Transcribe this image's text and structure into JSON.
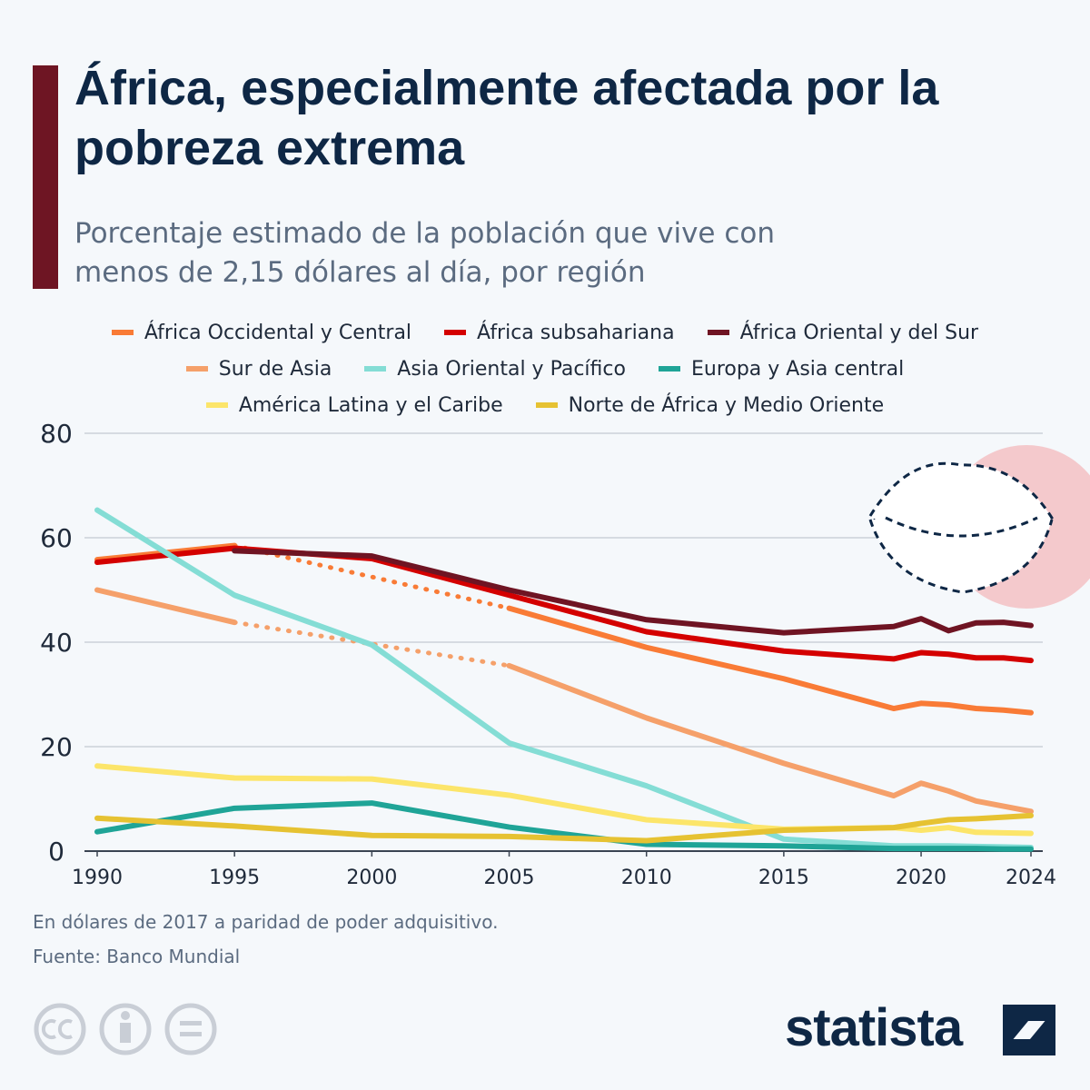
{
  "chart_data": {
    "type": "line",
    "title": "África, especialmente afectada por la pobreza extrema",
    "subtitle": "Porcentaje estimado de la población que vive con menos de 2,15 dólares al día, por región",
    "x": [
      1990,
      1995,
      2000,
      2005,
      2010,
      2015,
      2019,
      2020,
      2021,
      2022,
      2023,
      2024
    ],
    "series": [
      {
        "name": "África Occidental y Central",
        "color": "#f97b36",
        "values": [
          55.8,
          58.5,
          null,
          46.5,
          39,
          33,
          27.3,
          28.3,
          28,
          27.3,
          27,
          26.5
        ]
      },
      {
        "name": "África subsahariana",
        "color": "#d40000",
        "values": [
          55.3,
          58,
          56,
          49,
          42,
          38.3,
          36.8,
          38,
          37.7,
          37,
          37,
          36.5
        ]
      },
      {
        "name": "África Oriental y del Sur",
        "color": "#6f1423",
        "values": [
          null,
          57.5,
          56.5,
          50,
          44.3,
          41.8,
          43,
          44.5,
          42.2,
          43.7,
          43.8,
          43.2
        ]
      },
      {
        "name": "Sur de Asia",
        "color": "#f5a06a",
        "values": [
          50,
          43.8,
          null,
          35.5,
          25.5,
          16.8,
          10.6,
          13,
          11.5,
          9.6,
          8.6,
          7.6
        ]
      },
      {
        "name": "Asia Oriental y Pacífico",
        "color": "#84ddd5",
        "values": [
          65.3,
          49,
          39.5,
          20.7,
          12.5,
          2.3,
          1,
          1,
          1,
          0.9,
          0.8,
          0.7
        ]
      },
      {
        "name": "Europa y Asia central",
        "color": "#1fa497",
        "values": [
          3.7,
          8.2,
          9.2,
          4.6,
          1.3,
          1,
          0.5,
          0.5,
          0.5,
          0.5,
          0.4,
          0.4
        ]
      },
      {
        "name": "América Latina y el Caribe",
        "color": "#fce56a",
        "values": [
          16.3,
          14,
          13.8,
          10.7,
          6,
          4.2,
          4.5,
          4,
          4.5,
          3.6,
          3.5,
          3.4
        ]
      },
      {
        "name": "Norte de África y Medio Oriente",
        "color": "#e6c232",
        "values": [
          6.3,
          4.8,
          3,
          2.8,
          2,
          4,
          4.5,
          5.3,
          6,
          6.2,
          6.5,
          6.8
        ]
      }
    ],
    "gap_line": "dotted",
    "xlim": [
      1990,
      2024
    ],
    "xticks": [
      1990,
      1995,
      2000,
      2005,
      2010,
      2015,
      2020,
      2024
    ],
    "ylim": [
      0,
      80
    ],
    "yticks": [
      0,
      20,
      40,
      60,
      80
    ],
    "grid": true,
    "notes": [
      "En dólares de 2017 a paridad de poder adquisitivo.",
      "Fuente: Banco Mundial"
    ],
    "brand": "statista"
  }
}
